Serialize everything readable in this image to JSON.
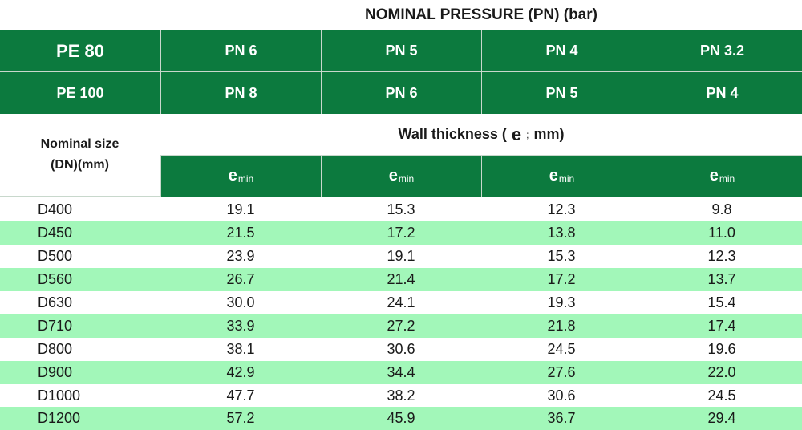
{
  "header": {
    "title": "NOMINAL PRESSURE (PN) (bar)",
    "pe80": {
      "label": "PE 80",
      "pn": [
        "PN 6",
        "PN 5",
        "PN 4",
        "PN 3.2"
      ]
    },
    "pe100": {
      "label": "PE 100",
      "pn": [
        "PN 8",
        "PN 6",
        "PN 5",
        "PN 4"
      ]
    },
    "nominal_line1": "Nominal size",
    "nominal_line2": "(DN)(mm)",
    "wall_prefix": "Wall thickness (",
    "wall_e": "e",
    "wall_semi": ";",
    "wall_suffix": "mm)",
    "emin_e": "e",
    "emin_sub": "min"
  },
  "rows": [
    {
      "dn": "D400",
      "values": [
        "19.1",
        "15.3",
        "12.3",
        "9.8"
      ]
    },
    {
      "dn": "D450",
      "values": [
        "21.5",
        "17.2",
        "13.8",
        "11.0"
      ]
    },
    {
      "dn": "D500",
      "values": [
        "23.9",
        "19.1",
        "15.3",
        "12.3"
      ]
    },
    {
      "dn": "D560",
      "values": [
        "26.7",
        "21.4",
        "17.2",
        "13.7"
      ]
    },
    {
      "dn": "D630",
      "values": [
        "30.0",
        "24.1",
        "19.3",
        "15.4"
      ]
    },
    {
      "dn": "D710",
      "values": [
        "33.9",
        "27.2",
        "21.8",
        "17.4"
      ]
    },
    {
      "dn": "D800",
      "values": [
        "38.1",
        "30.6",
        "24.5",
        "19.6"
      ]
    },
    {
      "dn": "D900",
      "values": [
        "42.9",
        "34.4",
        "27.6",
        "22.0"
      ]
    },
    {
      "dn": "D1000",
      "values": [
        "47.7",
        "38.2",
        "30.6",
        "24.5"
      ]
    },
    {
      "dn": "D1200",
      "values": [
        "57.2",
        "45.9",
        "36.7",
        "29.4"
      ]
    }
  ],
  "colors": {
    "header_green": "#0c7a3e",
    "row_alt": "#a2f7b9"
  }
}
